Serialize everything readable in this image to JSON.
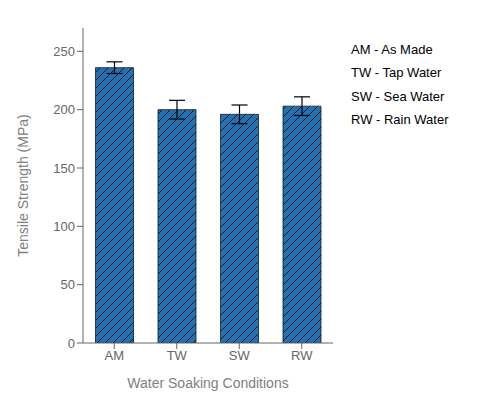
{
  "chart_data": {
    "type": "bar",
    "categories": [
      "AM",
      "TW",
      "SW",
      "RW"
    ],
    "values": [
      236,
      200,
      196,
      203
    ],
    "errors": [
      5,
      8,
      8,
      8
    ],
    "color": "#2171b5",
    "xlabel": "Water Soaking Conditions",
    "ylabel": "Tensile Strength (MPa)",
    "ylim": [
      0,
      270
    ],
    "yticks": [
      0,
      50,
      100,
      150,
      200,
      250
    ],
    "grid": false,
    "annotations": [
      "AM - As Made",
      "TW - Tap Water",
      "SW - Sea Water",
      "RW - Rain Water"
    ]
  }
}
